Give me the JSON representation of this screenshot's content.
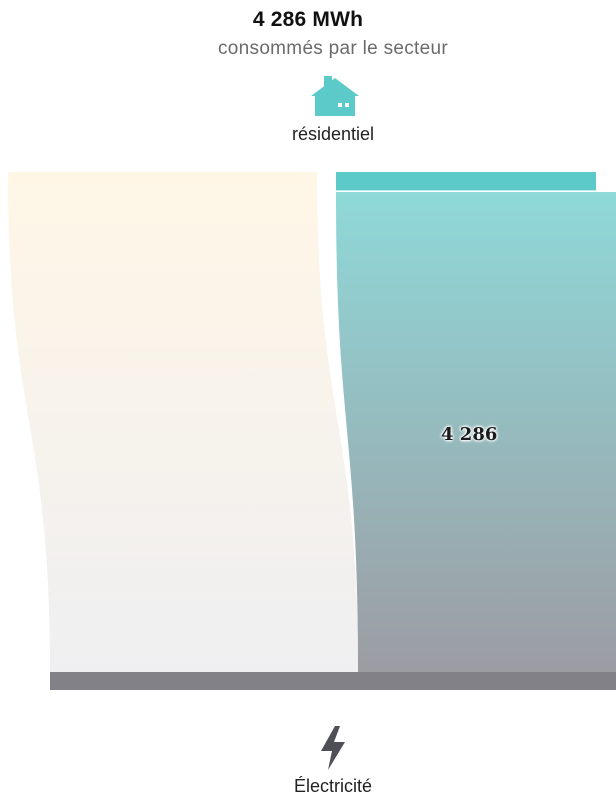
{
  "header": {
    "total": "4 286 MWh",
    "subtitle": "consommés par le secteur",
    "sector_icon": "house-icon",
    "sector_label": "résidentiel"
  },
  "flow": {
    "value_label": "4 286",
    "value": 4286,
    "colors": {
      "flow_top": "#8fd9d9",
      "flow_bottom": "#9c9ca3",
      "sector_bar": "#5ccac8",
      "source_bar": "#828188",
      "other_top": "#fff6e6",
      "other_bottom": "#efeff1"
    }
  },
  "source": {
    "icon": "lightning-icon",
    "label": "Électricité"
  }
}
